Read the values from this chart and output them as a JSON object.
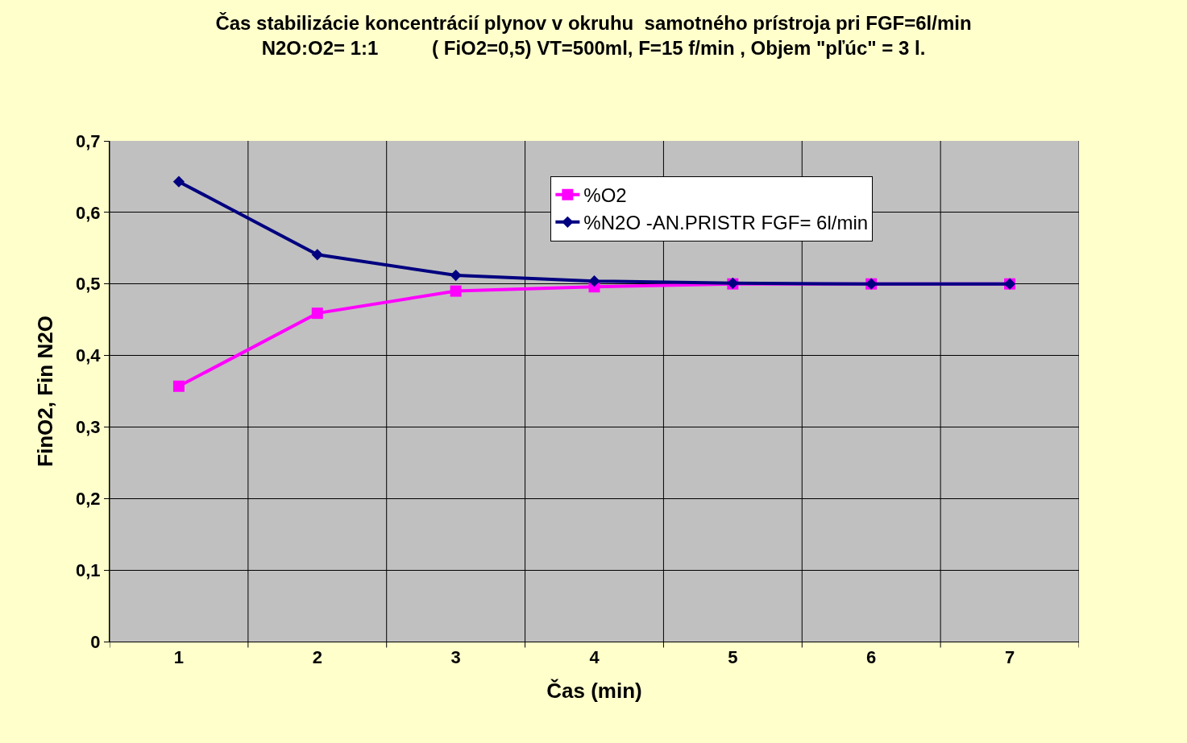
{
  "chart_data": {
    "type": "line",
    "title": "Čas stabilizácie koncentrácií plynov v okruhu  samotného prístroja pri FGF=6l/min\nN2O:O2= 1:1          ( FiO2=0,5) VT=500ml, F=15 f/min , Objem \"pľúc\" = 3 l.",
    "xlabel": "Čas (min)",
    "ylabel": "FinO2, Fin N2O",
    "categories": [
      "1",
      "2",
      "3",
      "4",
      "5",
      "6",
      "7"
    ],
    "series": [
      {
        "name": "%O2",
        "color": "#ff00ff",
        "marker": "square",
        "values": [
          0.357,
          0.459,
          0.49,
          0.496,
          0.5,
          0.5,
          0.5
        ]
      },
      {
        "name": "%N2O -AN.PRISTR FGF= 6l/min",
        "color": "#000080",
        "marker": "diamond",
        "values": [
          0.643,
          0.541,
          0.512,
          0.504,
          0.501,
          0.5,
          0.5
        ]
      }
    ],
    "ylim": [
      0,
      0.7
    ],
    "yticks": [
      0,
      {
        "value": 0.1,
        "label": "0,1"
      },
      {
        "value": 0.2,
        "label": "0,2"
      },
      {
        "value": 0.3,
        "label": "0,3"
      },
      {
        "value": 0.4,
        "label": "0,4"
      },
      {
        "value": 0.5,
        "label": "0,5"
      },
      {
        "value": 0.6,
        "label": "0,6"
      },
      {
        "value": 0.7,
        "label": "0,7"
      }
    ],
    "grid": true,
    "legend": "top right",
    "line_style": "solid"
  }
}
